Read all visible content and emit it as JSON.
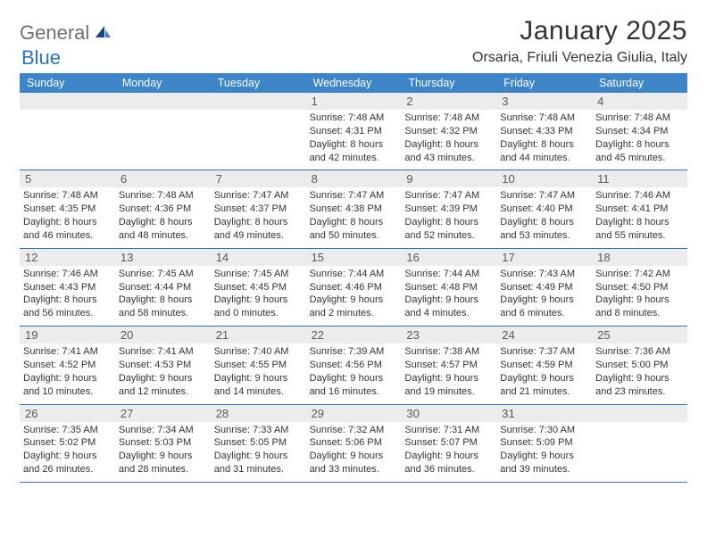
{
  "logo": {
    "part1": "General",
    "part2": "Blue"
  },
  "title": "January 2025",
  "location": "Orsaria, Friuli Venezia Giulia, Italy",
  "dow": [
    "Sunday",
    "Monday",
    "Tuesday",
    "Wednesday",
    "Thursday",
    "Friday",
    "Saturday"
  ],
  "colors": {
    "header_bg": "#3d85c6",
    "rule": "#2d72b6",
    "daynum_bg": "#ececec",
    "text": "#333333",
    "logo_gray": "#6f6f6f",
    "logo_blue": "#2d72b6"
  },
  "weeks": [
    [
      {
        "n": ""
      },
      {
        "n": ""
      },
      {
        "n": ""
      },
      {
        "n": "1",
        "sr": "Sunrise: 7:48 AM",
        "ss": "Sunset: 4:31 PM",
        "d1": "Daylight: 8 hours",
        "d2": "and 42 minutes."
      },
      {
        "n": "2",
        "sr": "Sunrise: 7:48 AM",
        "ss": "Sunset: 4:32 PM",
        "d1": "Daylight: 8 hours",
        "d2": "and 43 minutes."
      },
      {
        "n": "3",
        "sr": "Sunrise: 7:48 AM",
        "ss": "Sunset: 4:33 PM",
        "d1": "Daylight: 8 hours",
        "d2": "and 44 minutes."
      },
      {
        "n": "4",
        "sr": "Sunrise: 7:48 AM",
        "ss": "Sunset: 4:34 PM",
        "d1": "Daylight: 8 hours",
        "d2": "and 45 minutes."
      }
    ],
    [
      {
        "n": "5",
        "sr": "Sunrise: 7:48 AM",
        "ss": "Sunset: 4:35 PM",
        "d1": "Daylight: 8 hours",
        "d2": "and 46 minutes."
      },
      {
        "n": "6",
        "sr": "Sunrise: 7:48 AM",
        "ss": "Sunset: 4:36 PM",
        "d1": "Daylight: 8 hours",
        "d2": "and 48 minutes."
      },
      {
        "n": "7",
        "sr": "Sunrise: 7:47 AM",
        "ss": "Sunset: 4:37 PM",
        "d1": "Daylight: 8 hours",
        "d2": "and 49 minutes."
      },
      {
        "n": "8",
        "sr": "Sunrise: 7:47 AM",
        "ss": "Sunset: 4:38 PM",
        "d1": "Daylight: 8 hours",
        "d2": "and 50 minutes."
      },
      {
        "n": "9",
        "sr": "Sunrise: 7:47 AM",
        "ss": "Sunset: 4:39 PM",
        "d1": "Daylight: 8 hours",
        "d2": "and 52 minutes."
      },
      {
        "n": "10",
        "sr": "Sunrise: 7:47 AM",
        "ss": "Sunset: 4:40 PM",
        "d1": "Daylight: 8 hours",
        "d2": "and 53 minutes."
      },
      {
        "n": "11",
        "sr": "Sunrise: 7:46 AM",
        "ss": "Sunset: 4:41 PM",
        "d1": "Daylight: 8 hours",
        "d2": "and 55 minutes."
      }
    ],
    [
      {
        "n": "12",
        "sr": "Sunrise: 7:46 AM",
        "ss": "Sunset: 4:43 PM",
        "d1": "Daylight: 8 hours",
        "d2": "and 56 minutes."
      },
      {
        "n": "13",
        "sr": "Sunrise: 7:45 AM",
        "ss": "Sunset: 4:44 PM",
        "d1": "Daylight: 8 hours",
        "d2": "and 58 minutes."
      },
      {
        "n": "14",
        "sr": "Sunrise: 7:45 AM",
        "ss": "Sunset: 4:45 PM",
        "d1": "Daylight: 9 hours",
        "d2": "and 0 minutes."
      },
      {
        "n": "15",
        "sr": "Sunrise: 7:44 AM",
        "ss": "Sunset: 4:46 PM",
        "d1": "Daylight: 9 hours",
        "d2": "and 2 minutes."
      },
      {
        "n": "16",
        "sr": "Sunrise: 7:44 AM",
        "ss": "Sunset: 4:48 PM",
        "d1": "Daylight: 9 hours",
        "d2": "and 4 minutes."
      },
      {
        "n": "17",
        "sr": "Sunrise: 7:43 AM",
        "ss": "Sunset: 4:49 PM",
        "d1": "Daylight: 9 hours",
        "d2": "and 6 minutes."
      },
      {
        "n": "18",
        "sr": "Sunrise: 7:42 AM",
        "ss": "Sunset: 4:50 PM",
        "d1": "Daylight: 9 hours",
        "d2": "and 8 minutes."
      }
    ],
    [
      {
        "n": "19",
        "sr": "Sunrise: 7:41 AM",
        "ss": "Sunset: 4:52 PM",
        "d1": "Daylight: 9 hours",
        "d2": "and 10 minutes."
      },
      {
        "n": "20",
        "sr": "Sunrise: 7:41 AM",
        "ss": "Sunset: 4:53 PM",
        "d1": "Daylight: 9 hours",
        "d2": "and 12 minutes."
      },
      {
        "n": "21",
        "sr": "Sunrise: 7:40 AM",
        "ss": "Sunset: 4:55 PM",
        "d1": "Daylight: 9 hours",
        "d2": "and 14 minutes."
      },
      {
        "n": "22",
        "sr": "Sunrise: 7:39 AM",
        "ss": "Sunset: 4:56 PM",
        "d1": "Daylight: 9 hours",
        "d2": "and 16 minutes."
      },
      {
        "n": "23",
        "sr": "Sunrise: 7:38 AM",
        "ss": "Sunset: 4:57 PM",
        "d1": "Daylight: 9 hours",
        "d2": "and 19 minutes."
      },
      {
        "n": "24",
        "sr": "Sunrise: 7:37 AM",
        "ss": "Sunset: 4:59 PM",
        "d1": "Daylight: 9 hours",
        "d2": "and 21 minutes."
      },
      {
        "n": "25",
        "sr": "Sunrise: 7:36 AM",
        "ss": "Sunset: 5:00 PM",
        "d1": "Daylight: 9 hours",
        "d2": "and 23 minutes."
      }
    ],
    [
      {
        "n": "26",
        "sr": "Sunrise: 7:35 AM",
        "ss": "Sunset: 5:02 PM",
        "d1": "Daylight: 9 hours",
        "d2": "and 26 minutes."
      },
      {
        "n": "27",
        "sr": "Sunrise: 7:34 AM",
        "ss": "Sunset: 5:03 PM",
        "d1": "Daylight: 9 hours",
        "d2": "and 28 minutes."
      },
      {
        "n": "28",
        "sr": "Sunrise: 7:33 AM",
        "ss": "Sunset: 5:05 PM",
        "d1": "Daylight: 9 hours",
        "d2": "and 31 minutes."
      },
      {
        "n": "29",
        "sr": "Sunrise: 7:32 AM",
        "ss": "Sunset: 5:06 PM",
        "d1": "Daylight: 9 hours",
        "d2": "and 33 minutes."
      },
      {
        "n": "30",
        "sr": "Sunrise: 7:31 AM",
        "ss": "Sunset: 5:07 PM",
        "d1": "Daylight: 9 hours",
        "d2": "and 36 minutes."
      },
      {
        "n": "31",
        "sr": "Sunrise: 7:30 AM",
        "ss": "Sunset: 5:09 PM",
        "d1": "Daylight: 9 hours",
        "d2": "and 39 minutes."
      },
      {
        "n": ""
      }
    ]
  ]
}
